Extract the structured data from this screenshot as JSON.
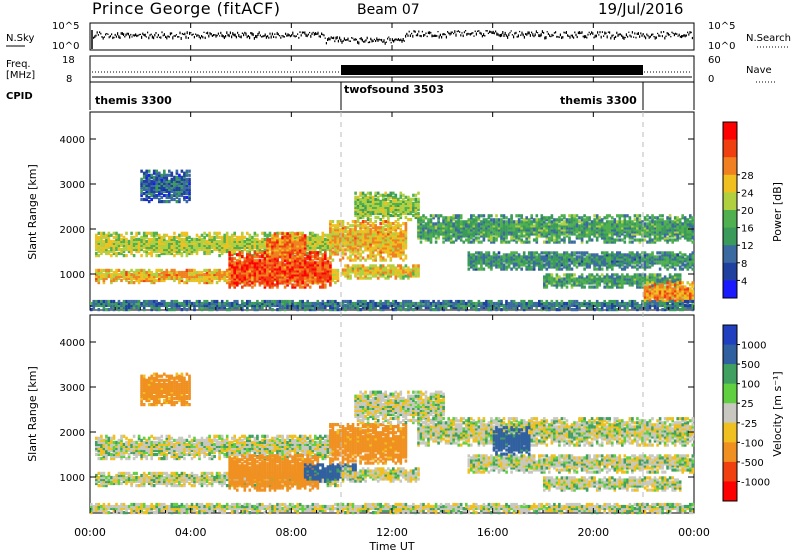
{
  "header": {
    "station": "Prince George (fitACF)",
    "beam": "Beam 07",
    "date": "19/Jul/2016"
  },
  "noise_panel": {
    "left_label": "N.Sky",
    "right_label": "N.Search",
    "left_ticks": [
      "10^5",
      "10^0"
    ],
    "right_ticks": [
      "10^5",
      "10^0"
    ]
  },
  "freq_panel": {
    "left_label_1": "Freq.",
    "left_label_2": "[MHz]",
    "left_ticks": [
      "18",
      "8"
    ],
    "right_label": "Nave",
    "right_ticks": [
      "60",
      "0"
    ]
  },
  "cpid_panel": {
    "label": "CPID",
    "modes": [
      {
        "name": "themis 3300",
        "start_hour": 0,
        "end_hour": 10
      },
      {
        "name": "twofsound 3503",
        "start_hour": 10,
        "end_hour": 22
      },
      {
        "name": "themis 3300",
        "start_hour": 22,
        "end_hour": 24
      }
    ]
  },
  "chart_data": [
    {
      "type": "heatmap",
      "name": "power",
      "ylabel": "Slant Range [km]",
      "y_ticks": [
        "1000",
        "2000",
        "3000",
        "4000"
      ],
      "ylim": [
        200,
        4600
      ],
      "x_tick_labels": [
        "00:00",
        "04:00",
        "08:00",
        "12:00",
        "16:00",
        "20:00",
        "00:00"
      ],
      "xlim_hours": [
        0,
        24
      ],
      "colorbar": {
        "label": "Power [dB]",
        "ticks": [
          "4",
          "8",
          "12",
          "16",
          "20",
          "24",
          "28"
        ],
        "colors": [
          "#1a1aff",
          "#2040a0",
          "#3a6aa0",
          "#3a9a5a",
          "#50b050",
          "#b0d040",
          "#f0c020",
          "#f08020",
          "#f04010",
          "#ff0000"
        ]
      },
      "regions": [
        {
          "t0": 0.2,
          "t1": 9.5,
          "r0": 1400,
          "r1": 1900,
          "p": 18
        },
        {
          "t0": 0.2,
          "t1": 9.8,
          "r0": 800,
          "r1": 1100,
          "p": 22
        },
        {
          "t0": 5.5,
          "t1": 9.5,
          "r0": 700,
          "r1": 1500,
          "p": 28
        },
        {
          "t0": 7.0,
          "t1": 8.5,
          "r0": 1300,
          "r1": 1900,
          "p": 26
        },
        {
          "t0": 2.0,
          "t1": 4.0,
          "r0": 2600,
          "r1": 3300,
          "p": 6
        },
        {
          "t0": 9.5,
          "t1": 12.5,
          "r0": 1300,
          "r1": 2200,
          "p": 22
        },
        {
          "t0": 10.0,
          "t1": 13.0,
          "r0": 900,
          "r1": 1200,
          "p": 20
        },
        {
          "t0": 10.5,
          "t1": 13.0,
          "r0": 2200,
          "r1": 2800,
          "p": 16
        },
        {
          "t0": 13.0,
          "t1": 24.0,
          "r0": 1700,
          "r1": 2300,
          "p": 12
        },
        {
          "t0": 15.0,
          "t1": 24.0,
          "r0": 1100,
          "r1": 1500,
          "p": 10
        },
        {
          "t0": 18.0,
          "t1": 23.5,
          "r0": 700,
          "r1": 1000,
          "p": 12
        },
        {
          "t0": 22.0,
          "t1": 24.0,
          "r0": 300,
          "r1": 800,
          "p": 24
        },
        {
          "t0": 0.0,
          "t1": 24.0,
          "r0": 200,
          "r1": 400,
          "p": 8
        }
      ]
    },
    {
      "type": "heatmap",
      "name": "velocity",
      "ylabel": "Slant Range [km]",
      "y_ticks": [
        "1000",
        "2000",
        "3000",
        "4000"
      ],
      "ylim": [
        200,
        4600
      ],
      "x_tick_labels": [
        "00:00",
        "04:00",
        "08:00",
        "12:00",
        "16:00",
        "20:00",
        "00:00"
      ],
      "xlim_hours": [
        0,
        24
      ],
      "xlabel": "Time UT",
      "colorbar": {
        "label": "Velocity [m s⁻¹]",
        "ticks": [
          "1000",
          "500",
          "100",
          "25",
          "-25",
          "-100",
          "-500",
          "-1000"
        ],
        "colors": [
          "#2040c0",
          "#3060a0",
          "#40a060",
          "#60d040",
          "#c8c8c0",
          "#f0c020",
          "#f09020",
          "#f04010",
          "#ff0000"
        ]
      },
      "regions": [
        {
          "t0": 0.2,
          "t1": 9.5,
          "r0": 1400,
          "r1": 1900,
          "v": 0
        },
        {
          "t0": 0.2,
          "t1": 9.8,
          "r0": 800,
          "r1": 1100,
          "v": 0
        },
        {
          "t0": 5.5,
          "t1": 9.0,
          "r0": 700,
          "r1": 1500,
          "v": -200
        },
        {
          "t0": 8.5,
          "t1": 10.5,
          "r0": 900,
          "r1": 1300,
          "v": 150
        },
        {
          "t0": 2.0,
          "t1": 4.0,
          "r0": 2600,
          "r1": 3300,
          "v": -150
        },
        {
          "t0": 9.5,
          "t1": 12.5,
          "r0": 1300,
          "r1": 2200,
          "v": -150
        },
        {
          "t0": 10.0,
          "t1": 13.0,
          "r0": 900,
          "r1": 1200,
          "v": 0
        },
        {
          "t0": 10.5,
          "t1": 14.0,
          "r0": 2200,
          "r1": 2900,
          "v": 0
        },
        {
          "t0": 13.0,
          "t1": 24.0,
          "r0": 1700,
          "r1": 2300,
          "v": 0
        },
        {
          "t0": 15.0,
          "t1": 24.0,
          "r0": 1100,
          "r1": 1500,
          "v": 0
        },
        {
          "t0": 16.0,
          "t1": 17.5,
          "r0": 1500,
          "r1": 2100,
          "v": 150
        },
        {
          "t0": 18.0,
          "t1": 23.5,
          "r0": 700,
          "r1": 1000,
          "v": 0
        },
        {
          "t0": 0.0,
          "t1": 24.0,
          "r0": 200,
          "r1": 400,
          "v": 0
        }
      ]
    }
  ]
}
